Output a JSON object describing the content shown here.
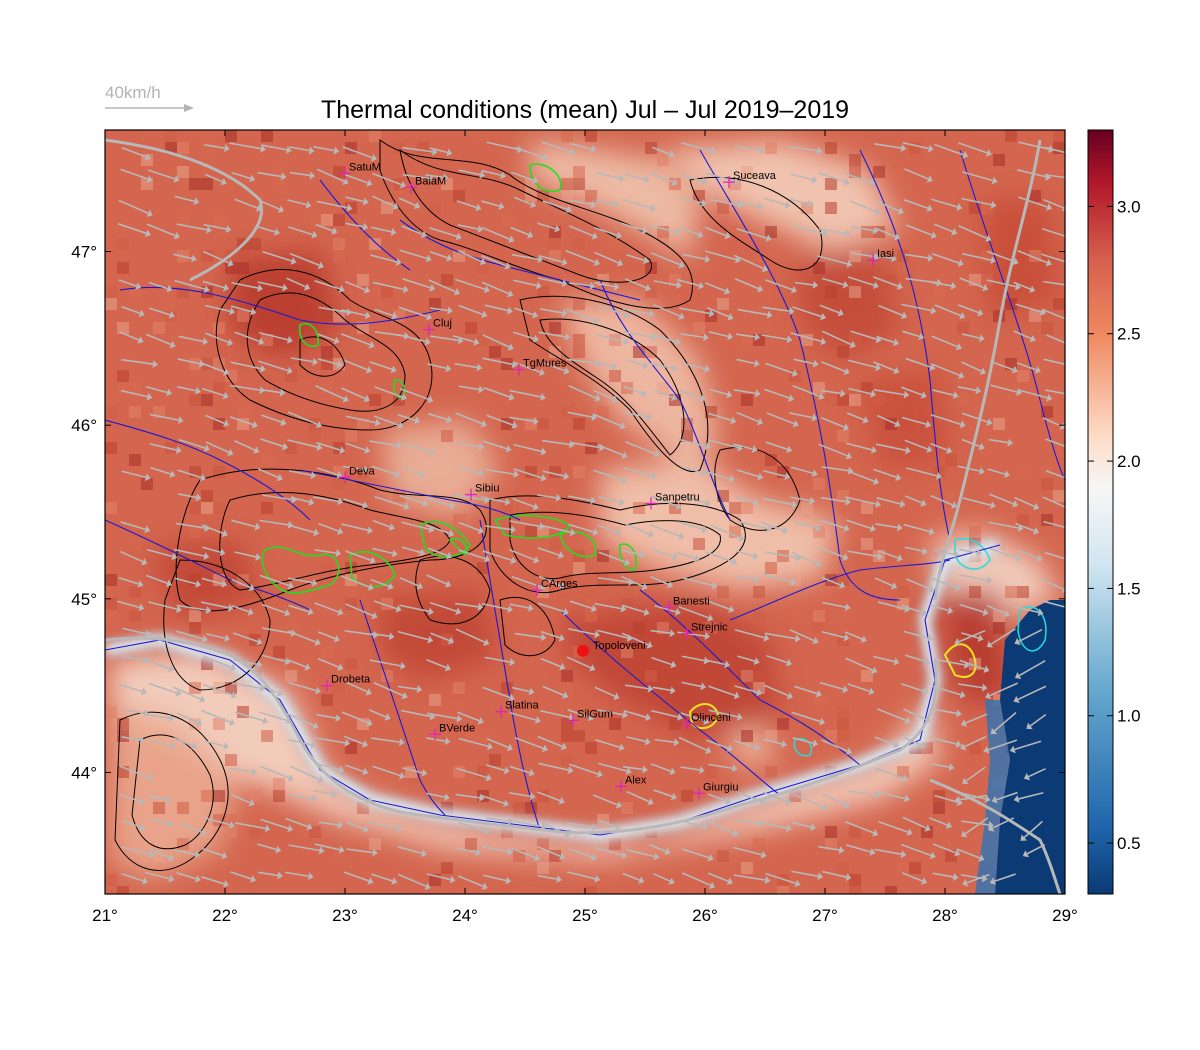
{
  "title": "Thermal conditions (mean) Jul – Jul  2019–2019",
  "wind_legend": {
    "label": "40km/h",
    "color": "#b3b3b3"
  },
  "map": {
    "lon_range": [
      21,
      29
    ],
    "lat_range": [
      43.3,
      47.7
    ],
    "lon_ticks": [
      "21°",
      "22°",
      "23°",
      "24°",
      "25°",
      "26°",
      "27°",
      "28°",
      "29°"
    ],
    "lat_ticks": [
      "44°",
      "45°",
      "46°",
      "47°"
    ],
    "colors": {
      "river": "#1a1ad6",
      "contour": "#000000",
      "green_contour": "#22dd22",
      "cyan_contour": "#22dddd",
      "yellow_contour": "#f0e020",
      "wind_arrow": "#b8b8b8",
      "city_marker": "#e020c0",
      "highlight_point": "#ee1111"
    }
  },
  "colorbar": {
    "range": [
      0.3,
      3.3
    ],
    "ticks": [
      "0.5",
      "1.0",
      "1.5",
      "2.0",
      "2.5",
      "3.0"
    ],
    "colormap": [
      "#0b3a75",
      "#2166ac",
      "#67a9cf",
      "#d1e5f0",
      "#f7f7f7",
      "#fddbc7",
      "#ef8a62",
      "#d6604d",
      "#b2182b",
      "#67001f"
    ]
  },
  "cities": [
    {
      "name": "SatuM",
      "lon": 23.0,
      "lat": 47.45
    },
    {
      "name": "BaiaM",
      "lon": 23.55,
      "lat": 47.37
    },
    {
      "name": "Suceava",
      "lon": 26.2,
      "lat": 47.4
    },
    {
      "name": "Iasi",
      "lon": 27.4,
      "lat": 46.95
    },
    {
      "name": "Cluj",
      "lon": 23.7,
      "lat": 46.55
    },
    {
      "name": "TgMures",
      "lon": 24.45,
      "lat": 46.32
    },
    {
      "name": "Deva",
      "lon": 23.0,
      "lat": 45.7
    },
    {
      "name": "Sibiu",
      "lon": 24.05,
      "lat": 45.6
    },
    {
      "name": "Sanpetru",
      "lon": 25.55,
      "lat": 45.55
    },
    {
      "name": "CArges",
      "lon": 24.6,
      "lat": 45.05
    },
    {
      "name": "Banesti",
      "lon": 25.7,
      "lat": 44.95
    },
    {
      "name": "Strejnic",
      "lon": 25.85,
      "lat": 44.8
    },
    {
      "name": "Drobeta",
      "lon": 22.85,
      "lat": 44.5
    },
    {
      "name": "Slatina",
      "lon": 24.3,
      "lat": 44.35
    },
    {
      "name": "SilGum",
      "lon": 24.9,
      "lat": 44.3
    },
    {
      "name": "Olinceni",
      "lon": 25.85,
      "lat": 44.28
    },
    {
      "name": "BVerde",
      "lon": 23.75,
      "lat": 44.22
    },
    {
      "name": "Alex",
      "lon": 25.3,
      "lat": 43.92
    },
    {
      "name": "Giurgiu",
      "lon": 25.95,
      "lat": 43.88
    }
  ],
  "highlight": {
    "name": "Topoloveni",
    "lon": 25.0,
    "lat": 44.7
  }
}
